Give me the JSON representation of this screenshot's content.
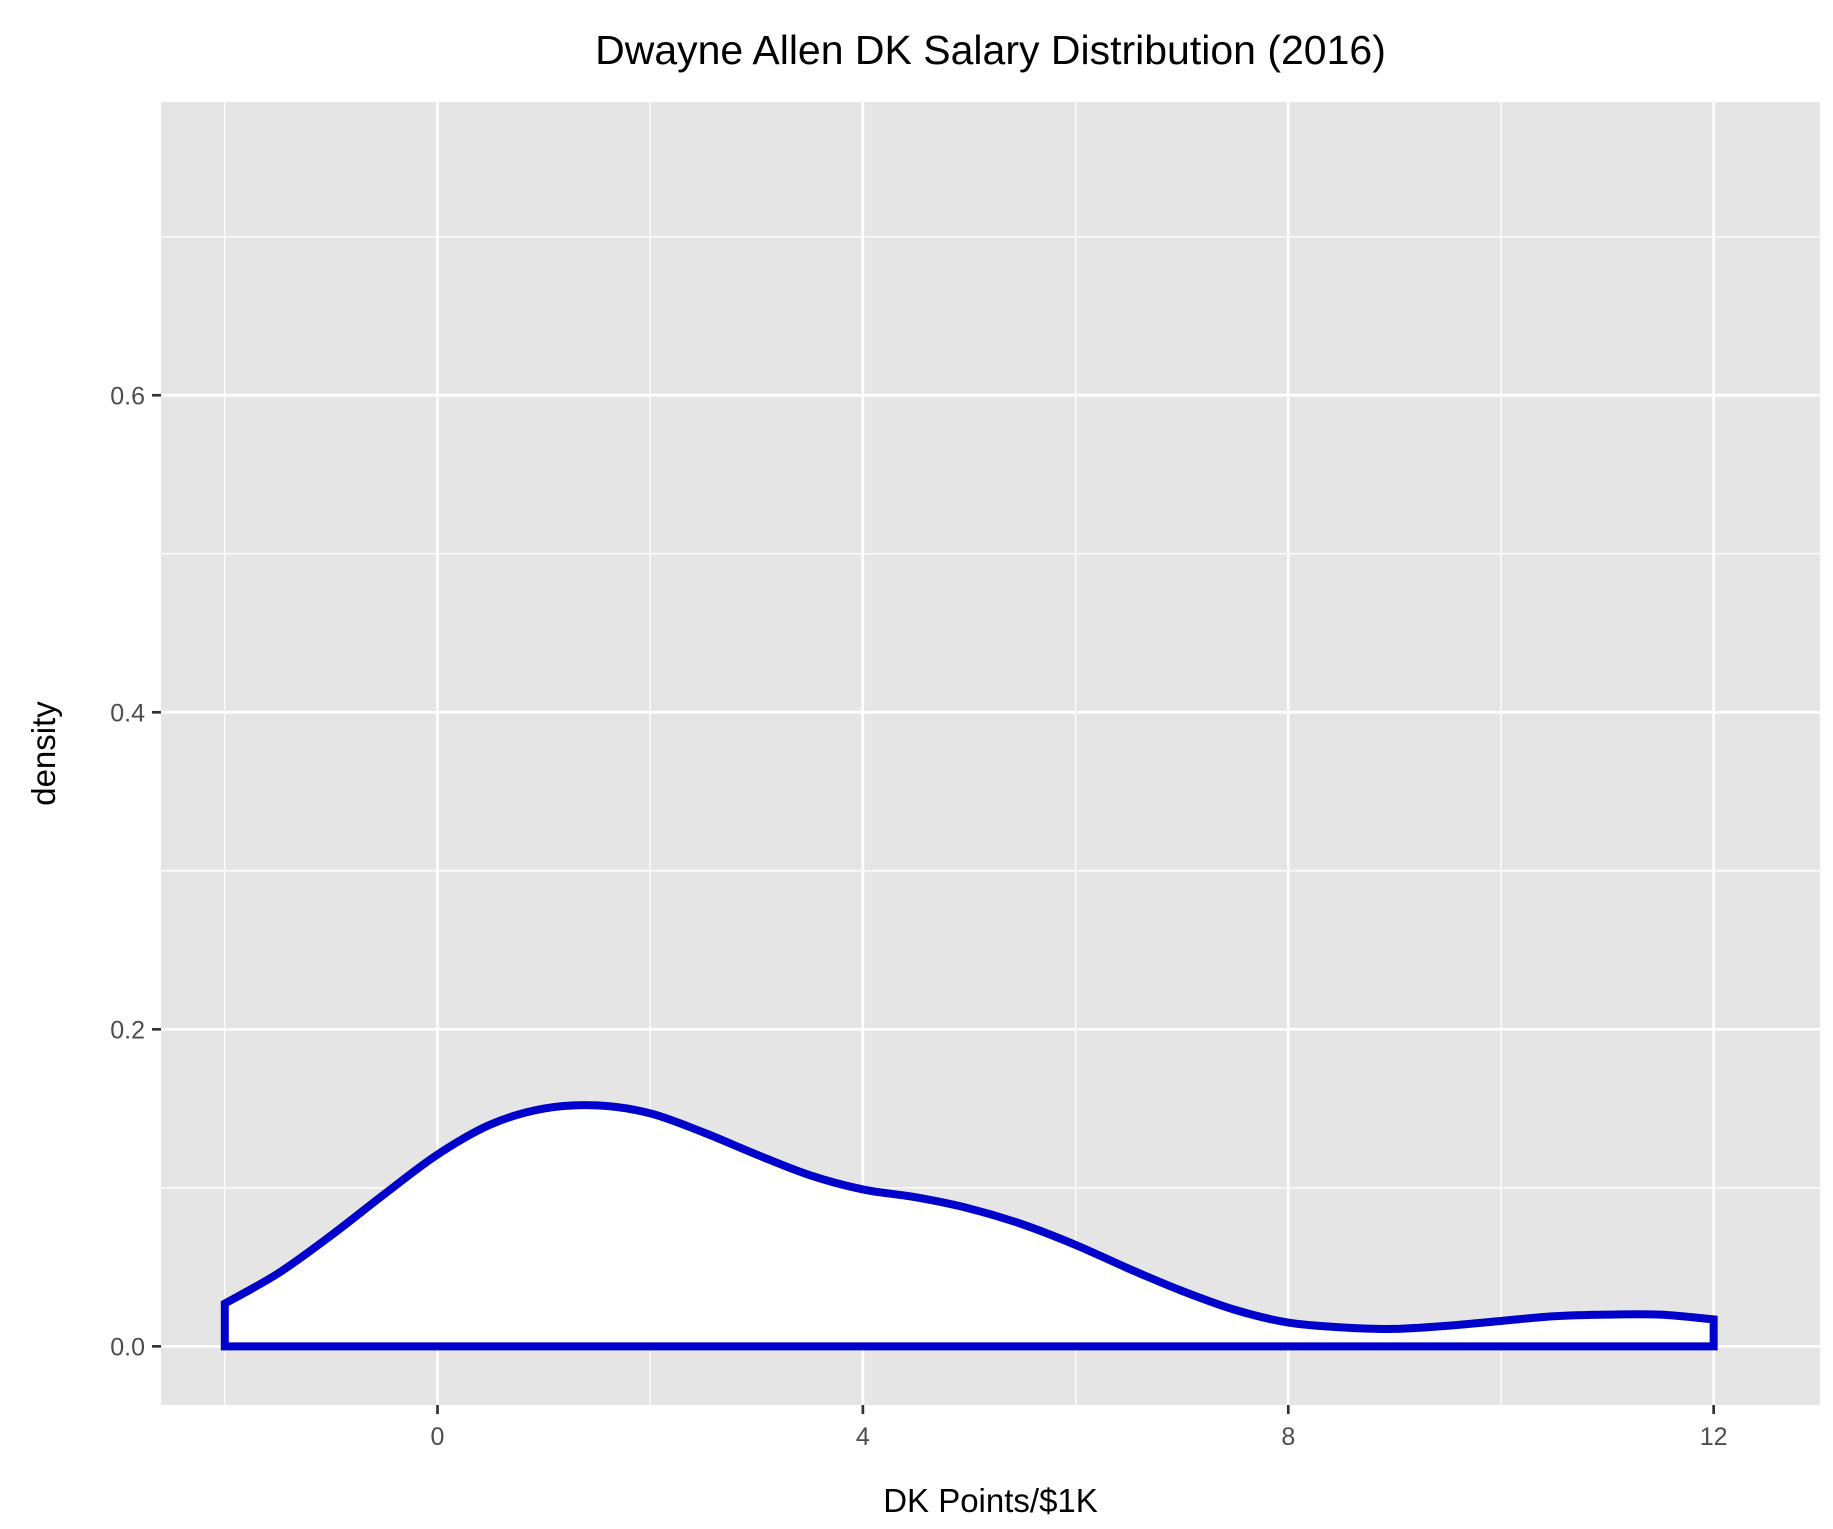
{
  "chart_data": {
    "type": "area",
    "title": "Dwayne Allen DK Salary Distribution (2016)",
    "xlabel": "DK Points/$1K",
    "ylabel": "density",
    "xlim": [
      -2.6,
      13.0
    ],
    "ylim": [
      -0.037,
      0.785
    ],
    "x_ticks": [
      0,
      4,
      8,
      12
    ],
    "x_tick_labels": [
      "0",
      "4",
      "8",
      "12"
    ],
    "y_ticks": [
      0.0,
      0.2,
      0.4,
      0.6
    ],
    "y_tick_labels": [
      "0.0",
      "0.2",
      "0.4",
      "0.6"
    ],
    "x_minor_gridlines": [
      -2,
      2,
      6,
      10
    ],
    "y_minor_gridlines": [
      0.1,
      0.3,
      0.5,
      0.7
    ],
    "grid": true,
    "series": [
      {
        "x": [
          -2.0,
          -1.5,
          -1.0,
          -0.5,
          0.0,
          0.5,
          1.0,
          1.5,
          2.0,
          2.5,
          3.0,
          3.5,
          4.0,
          4.5,
          5.0,
          5.5,
          6.0,
          6.5,
          7.0,
          7.5,
          8.0,
          8.5,
          9.0,
          9.5,
          10.0,
          10.5,
          11.0,
          11.5,
          12.0
        ],
        "y": [
          0.027,
          0.046,
          0.07,
          0.096,
          0.121,
          0.14,
          0.15,
          0.152,
          0.147,
          0.135,
          0.121,
          0.108,
          0.099,
          0.094,
          0.087,
          0.077,
          0.064,
          0.049,
          0.035,
          0.023,
          0.015,
          0.012,
          0.011,
          0.013,
          0.016,
          0.019,
          0.02,
          0.02,
          0.017
        ]
      }
    ],
    "colors": {
      "outline": "#0000cc",
      "fill": "#ffffff",
      "panel": "#e5e5e5",
      "grid": "#ffffff",
      "tick": "#333333"
    }
  }
}
